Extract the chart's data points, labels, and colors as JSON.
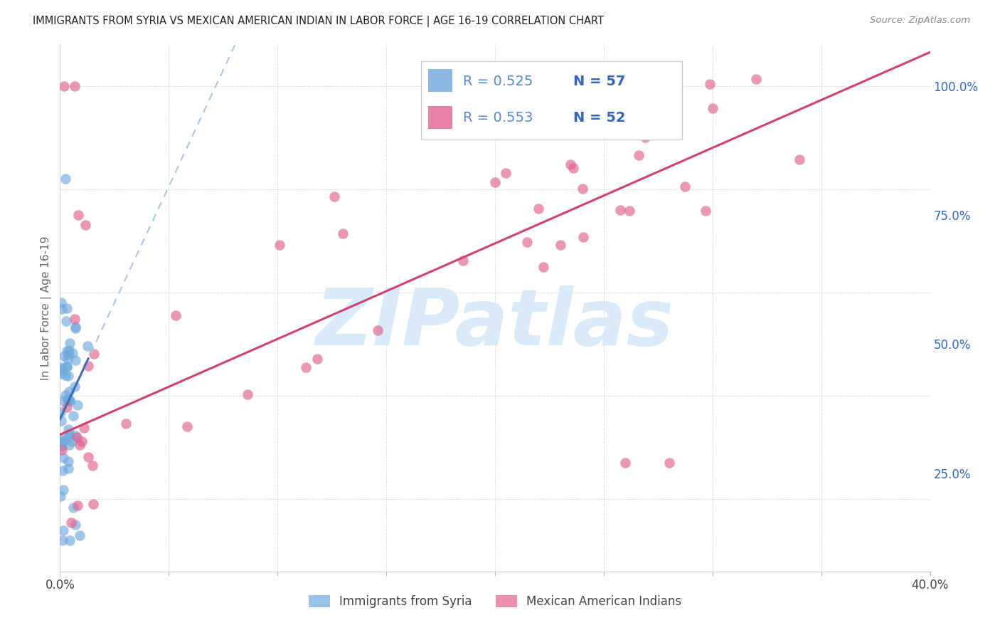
{
  "title": "IMMIGRANTS FROM SYRIA VS MEXICAN AMERICAN INDIAN IN LABOR FORCE | AGE 16-19 CORRELATION CHART",
  "source": "Source: ZipAtlas.com",
  "ylabel": "In Labor Force | Age 16-19",
  "xlim": [
    0.0,
    0.4
  ],
  "ylim": [
    0.06,
    1.08
  ],
  "y_ticks_right": [
    0.25,
    0.5,
    0.75,
    1.0
  ],
  "y_tick_labels_right": [
    "25.0%",
    "50.0%",
    "75.0%",
    "100.0%"
  ],
  "x_tick_positions": [
    0.0,
    0.05,
    0.1,
    0.15,
    0.2,
    0.25,
    0.3,
    0.35,
    0.4
  ],
  "x_tick_labels": [
    "0.0%",
    "",
    "",
    "",
    "",
    "",
    "",
    "",
    "40.0%"
  ],
  "blue_color": "#6fa8dc",
  "pink_color": "#e06090",
  "trend_blue_color": "#3d6eb5",
  "trend_pink_color": "#d04070",
  "dashed_blue_color": "#aac4e0",
  "watermark_text": "ZIPatlas",
  "watermark_color": "#d8eaf7",
  "grid_color": "#cccccc",
  "background_color": "#ffffff",
  "legend_r1": "R = 0.525",
  "legend_n1": "N = 57",
  "legend_r2": "R = 0.553",
  "legend_n2": "N = 52",
  "legend_text_color": "#5588cc",
  "legend_n_color": "#3366bb"
}
